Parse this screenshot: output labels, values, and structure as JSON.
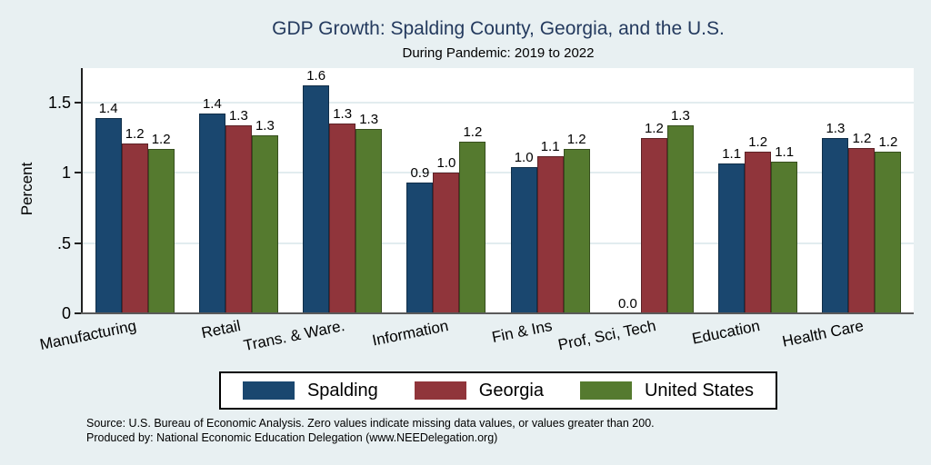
{
  "header": {
    "title": "GDP Growth: Spalding County, Georgia, and the U.S.",
    "subtitle": "During Pandemic: 2019 to 2022"
  },
  "y_axis": {
    "title": "Percent",
    "ticks": [
      {
        "label": "0",
        "value": 0
      },
      {
        "label": ".5",
        "value": 0.5
      },
      {
        "label": "1",
        "value": 1
      },
      {
        "label": "1.5",
        "value": 1.5
      }
    ]
  },
  "chart_data": {
    "type": "bar",
    "title": "GDP Growth: Spalding County, Georgia, and the U.S.",
    "subtitle": "During Pandemic: 2019 to 2022",
    "xlabel": "",
    "ylabel": "Percent",
    "ylim": [
      0,
      1.75
    ],
    "grid": true,
    "legend_position": "bottom",
    "categories": [
      "Manufacturing",
      "Retail",
      "Trans. & Ware.",
      "Information",
      "Fin & Ins",
      "Prof, Sci, Tech",
      "Education",
      "Health Care"
    ],
    "series": [
      {
        "name": "Spalding",
        "color": "#1A476F",
        "values": [
          1.39,
          1.42,
          1.62,
          0.93,
          1.04,
          0.0,
          1.07,
          1.25
        ],
        "display_labels": [
          "1.4",
          "1.4",
          "1.6",
          "0.9",
          "1.0",
          "0.0",
          "1.1",
          "1.3"
        ]
      },
      {
        "name": "Georgia",
        "color": "#90353B",
        "values": [
          1.21,
          1.34,
          1.35,
          1.0,
          1.12,
          1.25,
          1.15,
          1.18
        ],
        "display_labels": [
          "1.2",
          "1.3",
          "1.3",
          "1.0",
          "1.1",
          "1.2",
          "1.2",
          "1.2"
        ]
      },
      {
        "name": "United States",
        "color": "#557A2F",
        "values": [
          1.17,
          1.27,
          1.31,
          1.22,
          1.17,
          1.34,
          1.08,
          1.15
        ],
        "display_labels": [
          "1.2",
          "1.3",
          "1.3",
          "1.2",
          "1.2",
          "1.3",
          "1.1",
          "1.2"
        ]
      }
    ]
  },
  "footer": {
    "line1": "Source: U.S. Bureau of Economic Analysis. Zero values indicate missing data values, or values greater than 200.",
    "line2": "Produced by: National Economic Education Delegation (www.NEEDelegation.org)"
  },
  "colors": {
    "background": "#E8F0F2",
    "plot_background": "#FFFFFF",
    "title_text": "#243A5E",
    "gridline": "#E2ECEF",
    "y_axis_line": "#202020",
    "x_axis_line": "#5A5A5A",
    "spalding": "#1A476F",
    "georgia": "#90353B",
    "united_states": "#557A2F"
  }
}
